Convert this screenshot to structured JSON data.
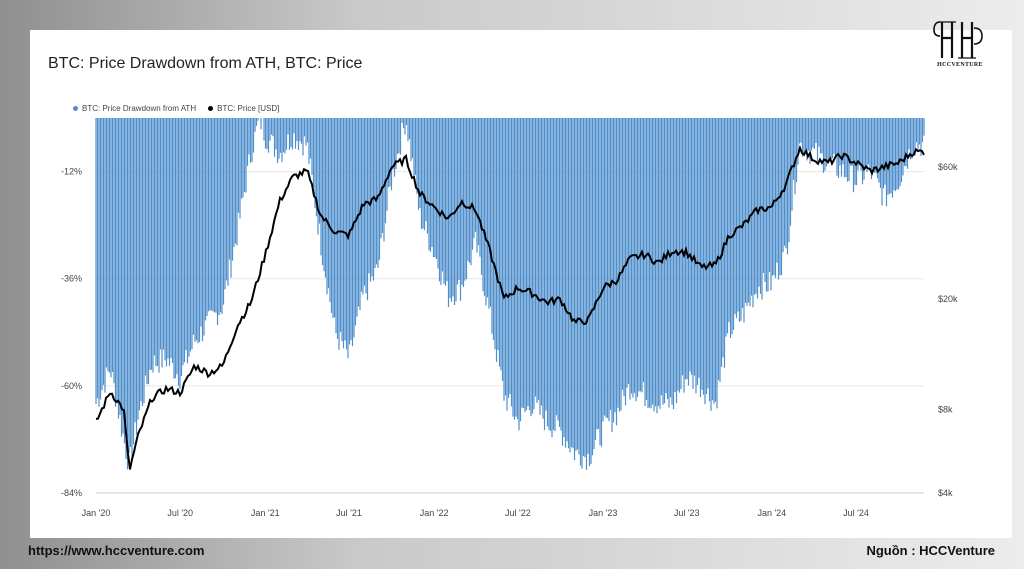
{
  "card": {
    "title": "BTC: Price Drawdown from ATH, BTC: Price",
    "logo_text": "HCCVENTURE"
  },
  "footer": {
    "url": "https://www.hccventure.com",
    "source": "Nguồn : HCCVenture"
  },
  "chart_data": {
    "type": "area",
    "title": "BTC: Price Drawdown from ATH, BTC: Price",
    "x_ticks": [
      "Jan '20",
      "Jul '20",
      "Jan '21",
      "Jul '21",
      "Jan '22",
      "Jul '22",
      "Jan '23",
      "Jul '23",
      "Jan '24",
      "Jul '24"
    ],
    "y_left_ticks": [
      "-12%",
      "-36%",
      "-60%",
      "-84%"
    ],
    "y_left_range": [
      -84,
      0
    ],
    "y_right_ticks": [
      "$60k",
      "$20k",
      "$8k",
      "$4k"
    ],
    "y_right_scale": "log",
    "y_right_range": [
      4000,
      90000
    ],
    "grid": true,
    "legend_position": "top-left",
    "colors": {
      "drawdown": "#4f8fcb",
      "price": "#000000"
    },
    "series": [
      {
        "name": "BTC: Price Drawdown from ATH",
        "axis": "left",
        "x": [
          "2020-01-01",
          "2020-02-01",
          "2020-03-01",
          "2020-03-13",
          "2020-04-01",
          "2020-05-01",
          "2020-06-01",
          "2020-07-01",
          "2020-08-01",
          "2020-09-01",
          "2020-10-01",
          "2020-11-01",
          "2020-12-01",
          "2020-12-20",
          "2021-01-01",
          "2021-02-01",
          "2021-03-01",
          "2021-04-01",
          "2021-05-01",
          "2021-06-01",
          "2021-07-01",
          "2021-08-01",
          "2021-09-01",
          "2021-10-01",
          "2021-11-01",
          "2021-12-01",
          "2022-01-01",
          "2022-02-01",
          "2022-03-01",
          "2022-04-01",
          "2022-05-01",
          "2022-06-01",
          "2022-07-01",
          "2022-08-01",
          "2022-09-01",
          "2022-10-01",
          "2022-11-01",
          "2022-12-01",
          "2023-01-01",
          "2023-02-01",
          "2023-03-01",
          "2023-04-01",
          "2023-05-01",
          "2023-06-01",
          "2023-07-01",
          "2023-08-01",
          "2023-09-01",
          "2023-10-01",
          "2023-11-01",
          "2023-12-01",
          "2024-01-01",
          "2024-02-01",
          "2024-03-01",
          "2024-04-01",
          "2024-05-01",
          "2024-06-01",
          "2024-07-01",
          "2024-08-01",
          "2024-09-01",
          "2024-10-01",
          "2024-11-01"
        ],
        "values": [
          -64,
          -56,
          -72,
          -78,
          -67,
          -55,
          -54,
          -58,
          -50,
          -46,
          -42,
          -26,
          -8,
          0,
          -4,
          -8,
          -4,
          -6,
          -28,
          -48,
          -54,
          -40,
          -34,
          -14,
          0,
          -22,
          -30,
          -40,
          -38,
          -28,
          -44,
          -62,
          -68,
          -64,
          -68,
          -70,
          -75,
          -76,
          -70,
          -66,
          -60,
          -62,
          -64,
          -64,
          -58,
          -60,
          -64,
          -48,
          -44,
          -38,
          -37,
          -30,
          -6,
          -8,
          -10,
          -12,
          -14,
          -12,
          -18,
          -14,
          -6
        ],
        "note": ""
      },
      {
        "name": "BTC: Price [USD]",
        "axis": "right",
        "x": [
          "2020-01-01",
          "2020-02-01",
          "2020-03-01",
          "2020-03-13",
          "2020-04-01",
          "2020-05-01",
          "2020-06-01",
          "2020-07-01",
          "2020-08-01",
          "2020-09-01",
          "2020-10-01",
          "2020-11-01",
          "2020-12-01",
          "2021-01-01",
          "2021-02-01",
          "2021-03-01",
          "2021-04-01",
          "2021-05-01",
          "2021-06-01",
          "2021-07-01",
          "2021-08-01",
          "2021-09-01",
          "2021-10-01",
          "2021-11-01",
          "2021-12-01",
          "2022-01-01",
          "2022-02-01",
          "2022-03-01",
          "2022-04-01",
          "2022-05-01",
          "2022-06-01",
          "2022-07-01",
          "2022-08-01",
          "2022-09-01",
          "2022-10-01",
          "2022-11-01",
          "2022-12-01",
          "2023-01-01",
          "2023-02-01",
          "2023-03-01",
          "2023-04-01",
          "2023-05-01",
          "2023-06-01",
          "2023-07-01",
          "2023-08-01",
          "2023-09-01",
          "2023-10-01",
          "2023-11-01",
          "2023-12-01",
          "2024-01-01",
          "2024-02-01",
          "2024-03-01",
          "2024-04-01",
          "2024-05-01",
          "2024-06-01",
          "2024-07-01",
          "2024-08-01",
          "2024-09-01",
          "2024-10-01",
          "2024-11-01"
        ],
        "values": [
          7200,
          9300,
          8000,
          4800,
          6400,
          8800,
          9500,
          9200,
          11500,
          10800,
          11500,
          16000,
          19500,
          29000,
          45000,
          55000,
          58000,
          40000,
          35000,
          34000,
          44000,
          46000,
          60000,
          64000,
          48000,
          43000,
          39000,
          45000,
          42000,
          30000,
          20000,
          22000,
          21000,
          19500,
          20000,
          16500,
          16800,
          22000,
          23500,
          28000,
          29000,
          27000,
          30000,
          29500,
          26000,
          26500,
          34000,
          37000,
          42000,
          43000,
          52000,
          70000,
          64000,
          62000,
          66000,
          62000,
          58000,
          60000,
          62000,
          68000
        ]
      }
    ]
  },
  "legend": {
    "drawdown_label": "BTC: Price Drawdown from ATH",
    "price_label": "BTC: Price [USD]"
  }
}
